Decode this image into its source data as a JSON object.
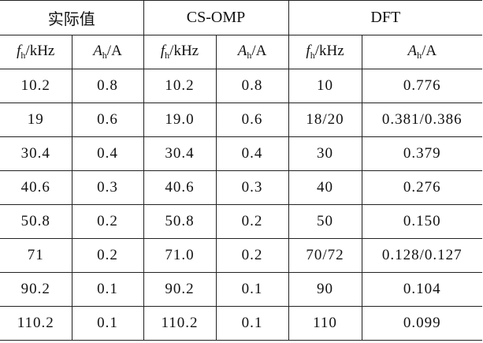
{
  "groups": {
    "actual": "实际值",
    "csomp": "CS-OMP",
    "dft": "DFT"
  },
  "units": {
    "f_symbol": "f",
    "f_sub": "h",
    "f_unit": "/kHz",
    "a_symbol": "A",
    "a_sub": "h",
    "a_unit": "/A"
  },
  "rows": [
    {
      "act_f": "10.2",
      "act_a": "0.8",
      "cs_f": "10.2",
      "cs_a": "0.8",
      "dft_f": "10",
      "dft_a": "0.776"
    },
    {
      "act_f": "19",
      "act_a": "0.6",
      "cs_f": "19.0",
      "cs_a": "0.6",
      "dft_f": "18/20",
      "dft_a": "0.381/0.386"
    },
    {
      "act_f": "30.4",
      "act_a": "0.4",
      "cs_f": "30.4",
      "cs_a": "0.4",
      "dft_f": "30",
      "dft_a": "0.379"
    },
    {
      "act_f": "40.6",
      "act_a": "0.3",
      "cs_f": "40.6",
      "cs_a": "0.3",
      "dft_f": "40",
      "dft_a": "0.276"
    },
    {
      "act_f": "50.8",
      "act_a": "0.2",
      "cs_f": "50.8",
      "cs_a": "0.2",
      "dft_f": "50",
      "dft_a": "0.150"
    },
    {
      "act_f": "71",
      "act_a": "0.2",
      "cs_f": "71.0",
      "cs_a": "0.2",
      "dft_f": "70/72",
      "dft_a": "0.128/0.127"
    },
    {
      "act_f": "90.2",
      "act_a": "0.1",
      "cs_f": "90.2",
      "cs_a": "0.1",
      "dft_f": "90",
      "dft_a": "0.104"
    },
    {
      "act_f": "110.2",
      "act_a": "0.1",
      "cs_f": "110.2",
      "cs_a": "0.1",
      "dft_f": "110",
      "dft_a": "0.099"
    }
  ]
}
